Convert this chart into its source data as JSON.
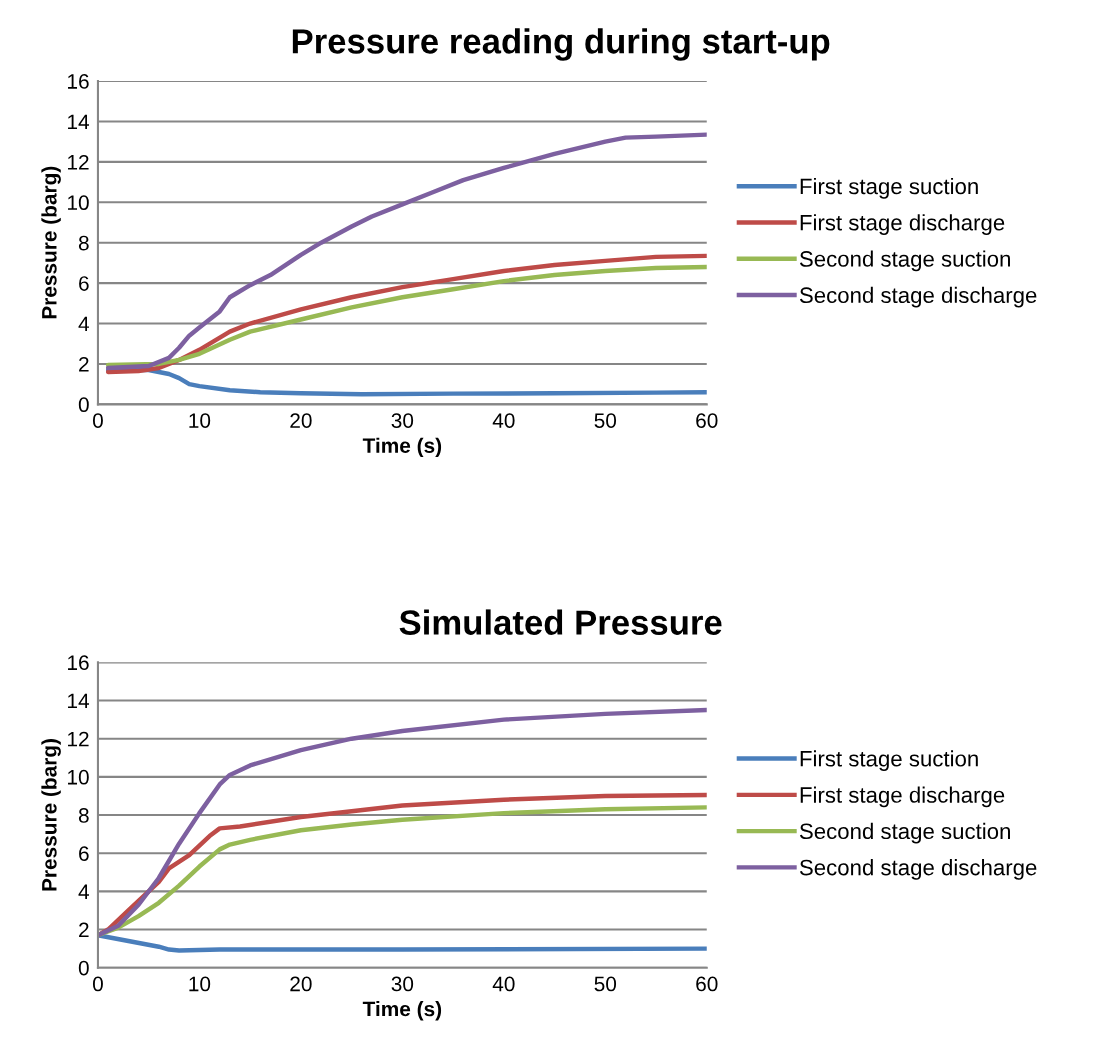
{
  "chart_data": [
    {
      "type": "line",
      "title": "Pressure reading during start-up",
      "xlabel": "Time (s)",
      "ylabel": "Pressure (barg)",
      "xlim": [
        0,
        60
      ],
      "xticks": [
        0,
        10,
        20,
        30,
        40,
        50,
        60
      ],
      "ylim": [
        0,
        16
      ],
      "yticks": [
        0,
        2,
        4,
        6,
        8,
        10,
        12,
        14,
        16
      ],
      "grid": "y",
      "legend": "right",
      "marker": "none",
      "line_style": "solid",
      "series": [
        {
          "name": "First stage suction",
          "color": "#4a7ebb",
          "x": [
            1,
            5,
            7,
            8,
            9,
            10,
            13,
            16,
            20,
            26,
            35,
            45,
            55,
            60
          ],
          "values": [
            1.7,
            1.7,
            1.5,
            1.3,
            1.0,
            0.9,
            0.7,
            0.6,
            0.55,
            0.5,
            0.53,
            0.55,
            0.58,
            0.6
          ]
        },
        {
          "name": "First stage discharge",
          "color": "#be4b48",
          "x": [
            1,
            4,
            6,
            8,
            10,
            13,
            15,
            20,
            25,
            30,
            35,
            40,
            45,
            50,
            55,
            60
          ],
          "values": [
            1.6,
            1.65,
            1.8,
            2.2,
            2.7,
            3.6,
            4.0,
            4.7,
            5.3,
            5.8,
            6.2,
            6.6,
            6.9,
            7.1,
            7.3,
            7.35
          ]
        },
        {
          "name": "Second stage suction",
          "color": "#98b954",
          "x": [
            1,
            6,
            8,
            10,
            13,
            15,
            20,
            25,
            30,
            35,
            40,
            45,
            50,
            55,
            60
          ],
          "values": [
            1.95,
            2.0,
            2.2,
            2.5,
            3.2,
            3.6,
            4.2,
            4.8,
            5.3,
            5.7,
            6.1,
            6.4,
            6.6,
            6.75,
            6.8
          ]
        },
        {
          "name": "Second stage discharge",
          "color": "#7d60a0",
          "x": [
            1,
            5,
            7,
            8,
            9,
            10,
            12,
            13,
            15,
            17,
            20,
            22,
            25,
            27,
            30,
            33,
            36,
            40,
            45,
            50,
            52,
            55,
            60
          ],
          "values": [
            1.8,
            1.9,
            2.3,
            2.8,
            3.4,
            3.8,
            4.6,
            5.3,
            5.9,
            6.4,
            7.4,
            8.0,
            8.8,
            9.3,
            9.9,
            10.5,
            11.1,
            11.7,
            12.4,
            13.0,
            13.2,
            13.25,
            13.35
          ]
        }
      ]
    },
    {
      "type": "line",
      "title": "Simulated Pressure",
      "xlabel": "Time (s)",
      "ylabel": "Pressure (barg)",
      "xlim": [
        0,
        60
      ],
      "xticks": [
        0,
        10,
        20,
        30,
        40,
        50,
        60
      ],
      "ylim": [
        0,
        16
      ],
      "yticks": [
        0,
        2,
        4,
        6,
        8,
        10,
        12,
        14,
        16
      ],
      "grid": "y",
      "legend": "right",
      "marker": "none",
      "line_style": "solid",
      "series": [
        {
          "name": "First stage suction",
          "color": "#4a7ebb",
          "x": [
            0,
            3,
            6,
            7,
            8,
            12,
            30,
            60
          ],
          "values": [
            1.7,
            1.4,
            1.1,
            0.95,
            0.9,
            0.95,
            0.95,
            1.0
          ]
        },
        {
          "name": "First stage discharge",
          "color": "#be4b48",
          "x": [
            0,
            1,
            3,
            5,
            6,
            7,
            9,
            11,
            12,
            14,
            20,
            25,
            30,
            40,
            50,
            60
          ],
          "values": [
            1.7,
            2.0,
            3.0,
            4.0,
            4.5,
            5.2,
            5.9,
            6.9,
            7.3,
            7.4,
            7.9,
            8.2,
            8.5,
            8.8,
            9.0,
            9.05
          ]
        },
        {
          "name": "Second stage suction",
          "color": "#98b954",
          "x": [
            0,
            2,
            4,
            6,
            8,
            10,
            12,
            13,
            15,
            20,
            25,
            30,
            40,
            50,
            60
          ],
          "values": [
            1.7,
            2.1,
            2.7,
            3.4,
            4.3,
            5.3,
            6.2,
            6.45,
            6.7,
            7.2,
            7.5,
            7.75,
            8.1,
            8.3,
            8.4
          ]
        },
        {
          "name": "Second stage discharge",
          "color": "#7d60a0",
          "x": [
            0,
            2,
            4,
            6,
            8,
            10,
            12,
            13,
            15,
            20,
            25,
            30,
            40,
            50,
            60
          ],
          "values": [
            1.7,
            2.2,
            3.3,
            4.7,
            6.5,
            8.1,
            9.6,
            10.1,
            10.6,
            11.4,
            12.0,
            12.4,
            13.0,
            13.3,
            13.5
          ]
        }
      ]
    }
  ]
}
